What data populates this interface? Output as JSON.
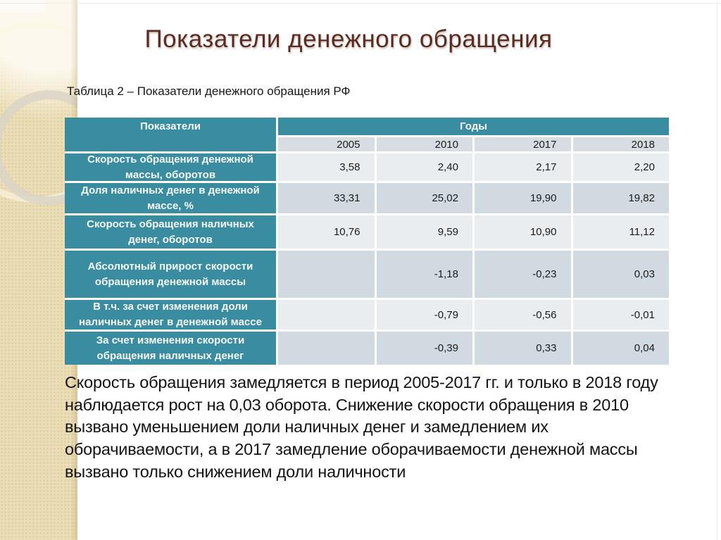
{
  "slide": {
    "title": "Показатели денежного обращения",
    "table_caption": "Таблица 2 – Показатели денежного обращения РФ",
    "commentary": "Скорость обращения замедляется в период 2005-2017 гг. и только в 2018 году наблюдается рост на 0,03 оборота. Снижение скорости обращения в 2010 вызвано уменьшением доли наличных денег и замедлением их оборачиваемости, а в 2017 замедление оборачиваемости денежной массы вызвано только снижением доли наличности",
    "colors": {
      "accent_teal": "#3A8CA1",
      "title_maroon": "#5A2C21",
      "sidebar_beige": "#EBDDB5",
      "band_light": "#EAEDF0",
      "band_dark": "#D1DAE0"
    }
  },
  "table": {
    "header": {
      "indicators_label": "Показатели",
      "years_label": "Годы",
      "years": [
        "2005",
        "2010",
        "2017",
        "2018"
      ]
    },
    "rows": [
      {
        "label": "Скорость обращения денежной массы, оборотов",
        "values": [
          "3,58",
          "2,40",
          "2,17",
          "2,20"
        ]
      },
      {
        "label": "Доля наличных денег в денежной массе, %",
        "values": [
          "33,31",
          "25,02",
          "19,90",
          "19,82"
        ]
      },
      {
        "label": "Скорость обращения наличных денег, оборотов",
        "values": [
          "10,76",
          "9,59",
          "10,90",
          "11,12"
        ]
      },
      {
        "label": "Абсолютный прирост скорости обращения денежной массы",
        "values": [
          "",
          "-1,18",
          "-0,23",
          "0,03"
        ]
      },
      {
        "label": "В т.ч. за счет изменения доли наличных денег в денежной массе",
        "values": [
          "",
          "-0,79",
          "-0,56",
          "-0,01"
        ]
      },
      {
        "label": "За счет изменения скорости обращения наличных денег",
        "values": [
          "",
          "-0,39",
          "0,33",
          "0,04"
        ]
      }
    ]
  }
}
